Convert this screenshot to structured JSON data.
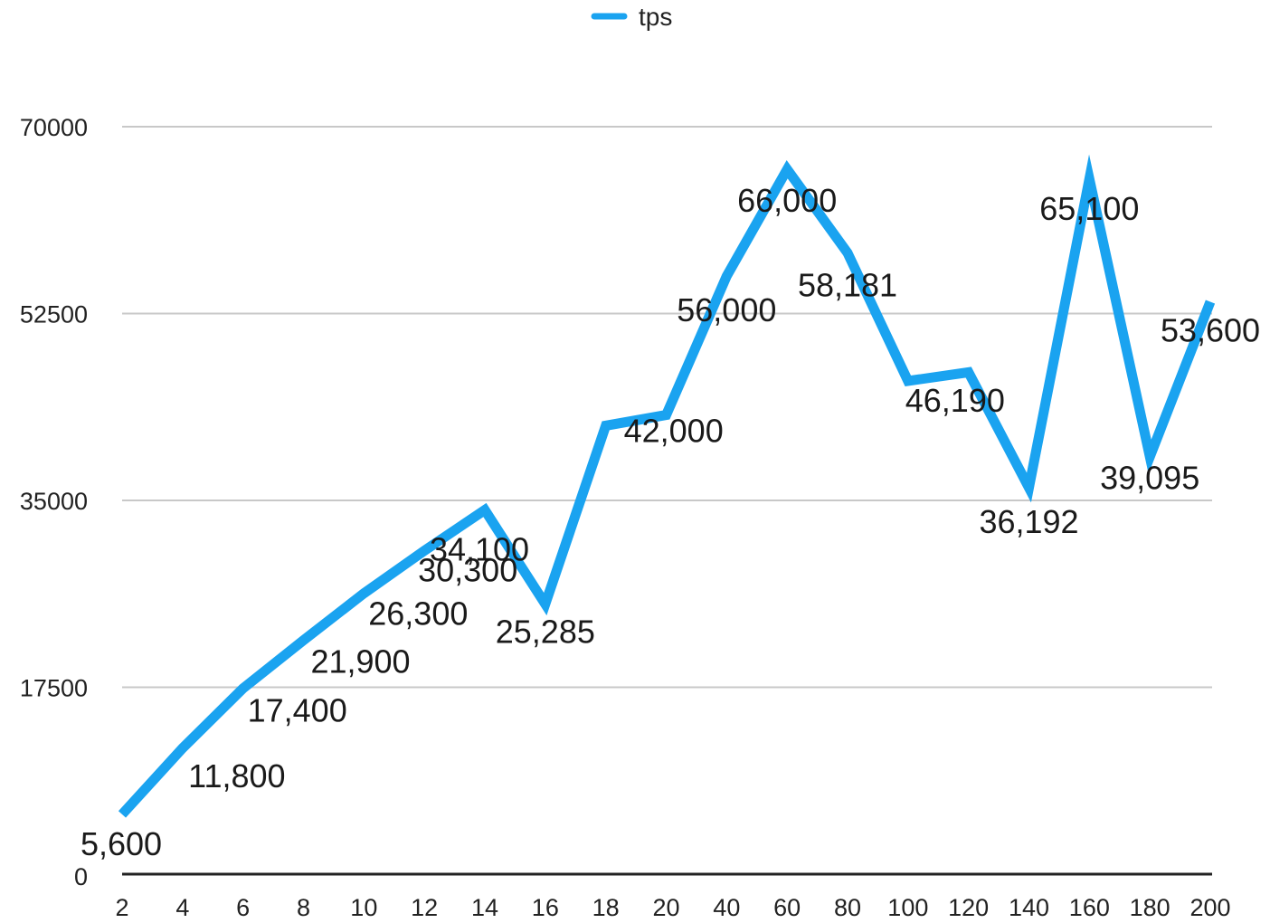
{
  "chart_data": {
    "type": "line",
    "title": "",
    "xlabel": "",
    "ylabel": "",
    "legend": {
      "position": "top-center",
      "entries": [
        "tps"
      ]
    },
    "categories": [
      "2",
      "4",
      "6",
      "8",
      "10",
      "12",
      "14",
      "16",
      "18",
      "20",
      "40",
      "60",
      "80",
      "100",
      "120",
      "140",
      "160",
      "180",
      "200"
    ],
    "series": [
      {
        "name": "tps",
        "color": "#1aa3f0",
        "values": [
          5600,
          11800,
          17400,
          21900,
          26300,
          30300,
          34100,
          25285,
          42000,
          43000,
          56000,
          66000,
          58181,
          46190,
          47000,
          36192,
          65100,
          39095,
          53600
        ],
        "labels": [
          "5,600",
          "11,800",
          "17,400",
          "21,900",
          "26,300",
          "30,300",
          "34,100",
          "25,285",
          "42,000",
          "",
          "56,000",
          "66,000",
          "58,181",
          "46,190",
          "",
          "36,192",
          "65,100",
          "39,095",
          "53,600"
        ]
      }
    ],
    "yticks": [
      "0",
      "17500",
      "35000",
      "52500",
      "70000"
    ],
    "ylim": [
      0,
      70000
    ],
    "grid": {
      "horizontal": true,
      "vertical": false
    },
    "gridline_color": "#c8c8c8",
    "axis_color": "#222222"
  }
}
